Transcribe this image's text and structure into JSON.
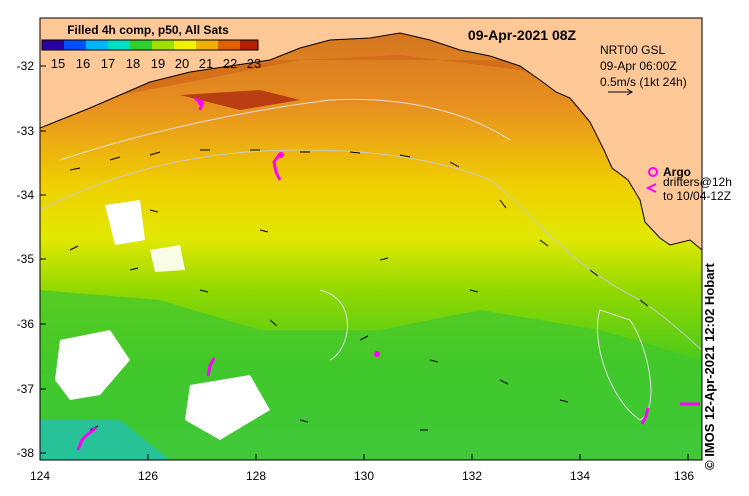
{
  "map": {
    "date_label": "09-Apr-2021 08Z",
    "product_label": "Filled 4h comp, p50, All Sats",
    "colorbar": {
      "ticks": [
        "15",
        "16",
        "17",
        "18",
        "19",
        "20",
        "21",
        "22",
        "23"
      ],
      "colors": [
        "#2b00a0",
        "#0050ff",
        "#00b4ff",
        "#00e0c0",
        "#30d030",
        "#a0e000",
        "#f0f000",
        "#f0b000",
        "#e06000",
        "#b02000"
      ]
    },
    "info": {
      "line1": "NRT00 GSL",
      "line2": "09-Apr 06:00Z",
      "line3": "0.5m/s (1kt 24h)"
    },
    "legend": {
      "argo": "Argo",
      "drifters": "drifters@12h",
      "drifters_to": "to 10/04-12Z"
    },
    "credit": "© IMOS 12-Apr-2021 12:02 Hobart",
    "x_ticks": [
      "124",
      "126",
      "128",
      "130",
      "132",
      "134",
      "136"
    ],
    "y_ticks": [
      "-32",
      "-33",
      "-34",
      "-35",
      "-36",
      "-37",
      "-38"
    ],
    "colors": {
      "land": "#ffc896",
      "argo": "#ff00ff"
    }
  }
}
